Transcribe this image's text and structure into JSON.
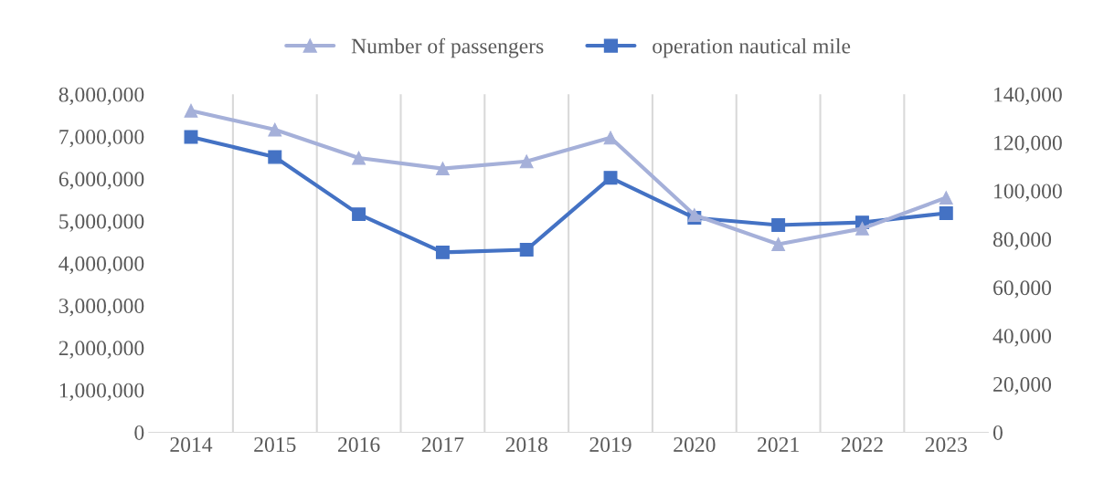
{
  "chart_data": {
    "type": "line",
    "categories": [
      "2014",
      "2015",
      "2016",
      "2017",
      "2018",
      "2019",
      "2020",
      "2021",
      "2022",
      "2023"
    ],
    "series": [
      {
        "name": "Number of passengers",
        "color": "#a5b0d9",
        "marker": "triangle",
        "values": [
          7610000,
          7160000,
          6490000,
          6240000,
          6410000,
          6970000,
          5140000,
          4450000,
          4820000,
          5550000
        ]
      },
      {
        "name": "operation nautical mile",
        "color": "#4472c4",
        "marker": "square",
        "axis": "y2",
        "values": [
          122300,
          114000,
          90300,
          74500,
          75600,
          105400,
          88800,
          85800,
          86900,
          90700
        ]
      }
    ],
    "ylim": [
      0,
      8000000
    ],
    "yticks": [
      {
        "value": 0,
        "label": "0"
      },
      {
        "value": 1000000,
        "label": "1,000,000"
      },
      {
        "value": 2000000,
        "label": "2,000,000"
      },
      {
        "value": 3000000,
        "label": "3,000,000"
      },
      {
        "value": 4000000,
        "label": "4,000,000"
      },
      {
        "value": 5000000,
        "label": "5,000,000"
      },
      {
        "value": 6000000,
        "label": "6,000,000"
      },
      {
        "value": 7000000,
        "label": "7,000,000"
      },
      {
        "value": 8000000,
        "label": "8,000,000"
      }
    ],
    "y2lim": [
      0,
      140000
    ],
    "y2ticks": [
      {
        "value": 0,
        "label": "0"
      },
      {
        "value": 20000,
        "label": "20,000"
      },
      {
        "value": 40000,
        "label": "40,000"
      },
      {
        "value": 60000,
        "label": "60,000"
      },
      {
        "value": 80000,
        "label": "80,000"
      },
      {
        "value": 100000,
        "label": "100,000"
      },
      {
        "value": 120000,
        "label": "120,000"
      },
      {
        "value": 140000,
        "label": "140,000"
      }
    ],
    "grid": "x",
    "legend": "top",
    "line_style": "solid"
  }
}
